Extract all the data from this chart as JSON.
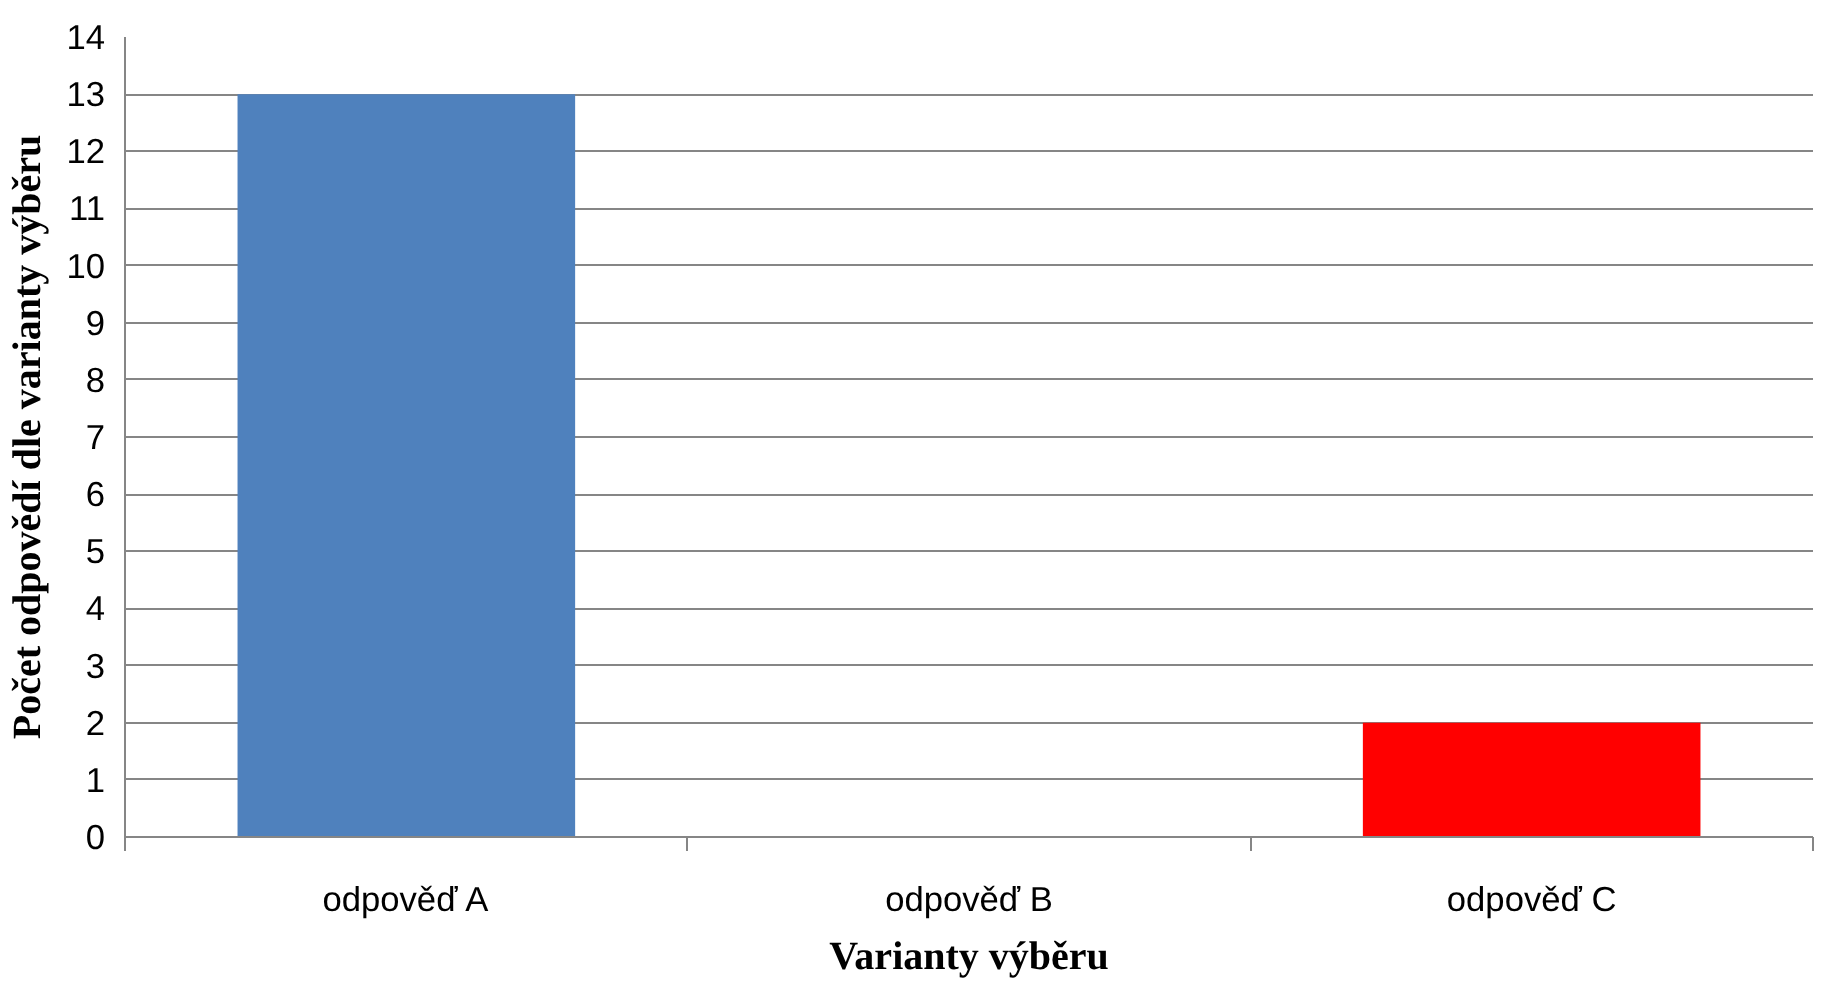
{
  "chart_data": {
    "type": "bar",
    "xlabel": "Varianty výběru",
    "ylabel": "Počet odpovědí dle varianty výběru",
    "categories": [
      "odpověď A",
      "odpověď B",
      "odpověď C"
    ],
    "values": [
      13,
      0,
      2
    ],
    "colors": [
      "#4f81bd",
      "#4f81bd",
      "#ff0000"
    ],
    "ylim": [
      0,
      14
    ],
    "yticks": [
      0,
      1,
      2,
      3,
      4,
      5,
      6,
      7,
      8,
      9,
      10,
      11,
      12,
      13,
      14
    ],
    "grid": "y"
  }
}
